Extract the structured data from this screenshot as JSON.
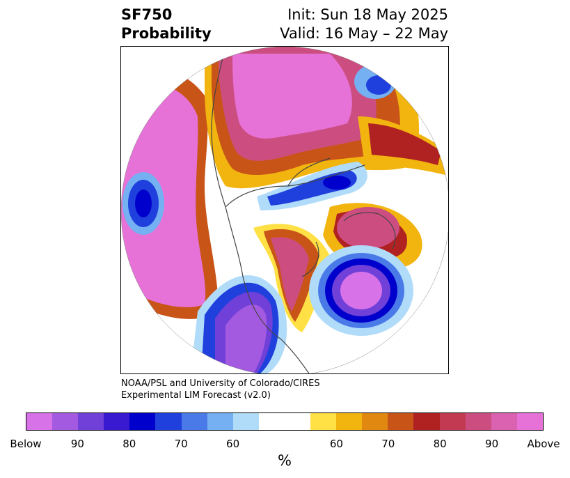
{
  "title": {
    "left_line1": "SF750",
    "left_line2": "Probability",
    "right_line1": "Init: Sun 18 May 2025",
    "right_line2": "Valid: 16 May – 22 May"
  },
  "credit": {
    "line1": "NOAA/PSL and University of Colorado/CIRES",
    "line2": "Experimental LIM Forecast (v2.0)"
  },
  "colorbar": {
    "unit": "%",
    "colors": [
      "#d872e8",
      "#a35ae0",
      "#7040d8",
      "#3a1ad0",
      "#0000cc",
      "#2040dd",
      "#4a7ae8",
      "#74b0f2",
      "#b0dcfa",
      "#ffffff",
      "#ffffff",
      "#ffe045",
      "#f2b40e",
      "#e08810",
      "#c85418",
      "#b02222",
      "#c23a52",
      "#cc4e80",
      "#db62b0",
      "#e672d8"
    ],
    "labels": [
      "Below",
      "90",
      "80",
      "70",
      "60",
      "60",
      "70",
      "80",
      "90",
      "Above"
    ]
  }
}
